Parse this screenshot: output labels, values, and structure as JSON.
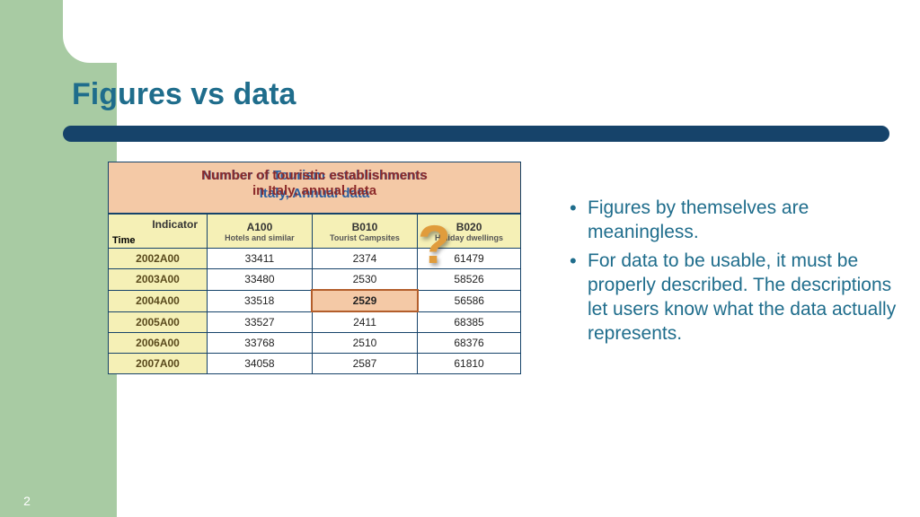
{
  "slide": {
    "title": "Figures vs data",
    "page_number": "2",
    "colors": {
      "sidebar": "#a8cba3",
      "accent_bar": "#16436a",
      "title_text": "#1f6d8c",
      "table_title_bg": "#f4c9a6",
      "table_header_bg": "#f5f0b6",
      "bullet_text": "#1f6d8c"
    }
  },
  "table": {
    "title_line1": "Number of touristic establishments",
    "title_line2": "in Italy,   annual data",
    "title_shadow1": "Number of   Tourism establishments",
    "title_shadow2": "Italy,    Annual data",
    "indicator_label": "Indicator",
    "time_label": "Time",
    "columns": [
      {
        "code": "A100",
        "sub": "Hotels and similar"
      },
      {
        "code": "B010",
        "sub": "Tourist Campsites"
      },
      {
        "code": "B020",
        "sub": "Holiday dwellings"
      }
    ],
    "rows": [
      {
        "label": "2002A00",
        "vals": [
          "33411",
          "2374",
          "61479"
        ]
      },
      {
        "label": "2003A00",
        "vals": [
          "33480",
          "2530",
          "58526"
        ]
      },
      {
        "label": "2004A00",
        "vals": [
          "33518",
          "2529",
          "56586"
        ]
      },
      {
        "label": "2005A00",
        "vals": [
          "33527",
          "2411",
          "68385"
        ]
      },
      {
        "label": "2006A00",
        "vals": [
          "33768",
          "2510",
          "68376"
        ]
      },
      {
        "label": "2007A00",
        "vals": [
          "34058",
          "2587",
          "61810"
        ]
      }
    ],
    "highlight": {
      "row": 2,
      "col": 1
    },
    "question_mark": "?"
  },
  "bullets": {
    "items": [
      "Figures by themselves are meaningless.",
      "For data to be usable, it must be properly described. The descriptions let users know what the data actually represents."
    ]
  }
}
